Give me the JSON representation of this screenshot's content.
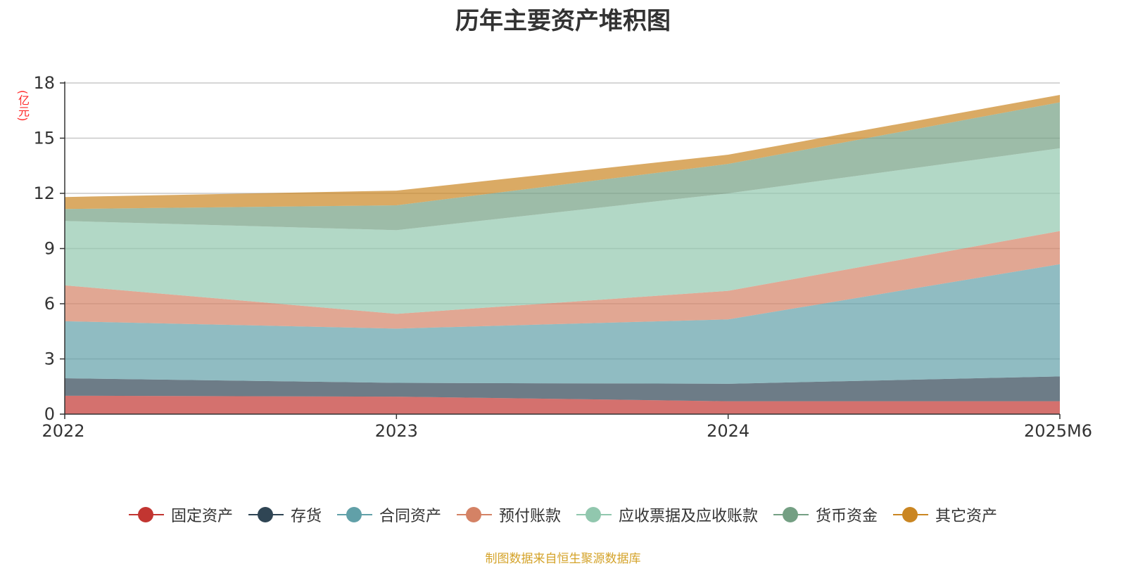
{
  "chart_data": {
    "type": "area",
    "title": "历年主要资产堆积图",
    "y_unit": "(亿元)",
    "x": [
      "2022",
      "2023",
      "2024",
      "2025M6"
    ],
    "ylim": [
      0,
      18
    ],
    "yticks": [
      0,
      3,
      6,
      9,
      12,
      15,
      18
    ],
    "stacked": true,
    "grid": true,
    "legend_position": "bottom",
    "series": [
      {
        "name": "固定资产",
        "color": "#c23531",
        "values": [
          1.0,
          0.95,
          0.7,
          0.7
        ]
      },
      {
        "name": "存货",
        "color": "#2f4554",
        "values": [
          0.95,
          0.75,
          0.95,
          1.35
        ]
      },
      {
        "name": "合同资产",
        "color": "#61a0a8",
        "values": [
          3.1,
          2.95,
          3.5,
          6.1
        ]
      },
      {
        "name": "预付账款",
        "color": "#d48265",
        "values": [
          1.95,
          0.8,
          1.55,
          1.8
        ]
      },
      {
        "name": "应收票据及应收账款",
        "color": "#91c7ae",
        "values": [
          3.5,
          4.55,
          5.3,
          4.5
        ]
      },
      {
        "name": "货币资金",
        "color": "#749f83",
        "values": [
          0.65,
          1.35,
          1.6,
          2.5
        ]
      },
      {
        "name": "其它资产",
        "color": "#ca8622",
        "values": [
          0.65,
          0.8,
          0.5,
          0.4
        ]
      }
    ]
  },
  "footer": {
    "source": "制图数据来自恒生聚源数据库"
  }
}
